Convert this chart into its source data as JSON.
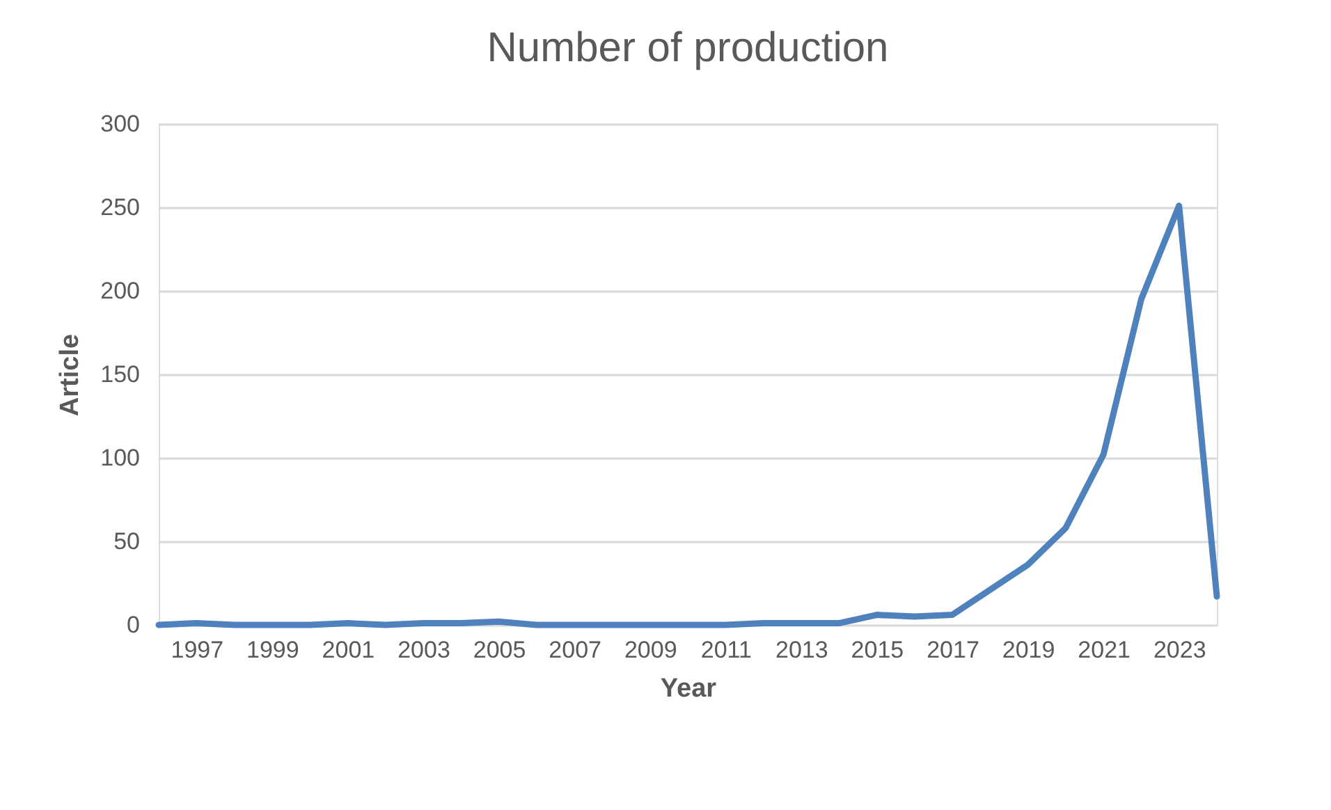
{
  "chart_data": {
    "type": "line",
    "title": "Number of production",
    "xlabel": "Year",
    "ylabel": "Article",
    "categories": [
      null,
      "1997",
      null,
      "1999",
      null,
      "2001",
      null,
      "2003",
      null,
      "2005",
      null,
      "2007",
      null,
      "2009",
      null,
      "2011",
      null,
      "2013",
      null,
      "2015",
      null,
      "2017",
      null,
      "2019",
      null,
      "2021",
      null,
      "2023",
      null
    ],
    "series": [
      {
        "color": "#4f81bd",
        "values": [
          0,
          1,
          0,
          0,
          0,
          1,
          0,
          1,
          1,
          2,
          0,
          0,
          0,
          0,
          0,
          0,
          1,
          1,
          1,
          6,
          5,
          6,
          21,
          36,
          58,
          102,
          195,
          251,
          17
        ]
      }
    ],
    "ylim": [
      0,
      300
    ],
    "yticks": [
      0,
      50,
      100,
      150,
      200,
      250,
      300
    ],
    "grid": "y",
    "marker": "none",
    "line_style": "solid"
  }
}
